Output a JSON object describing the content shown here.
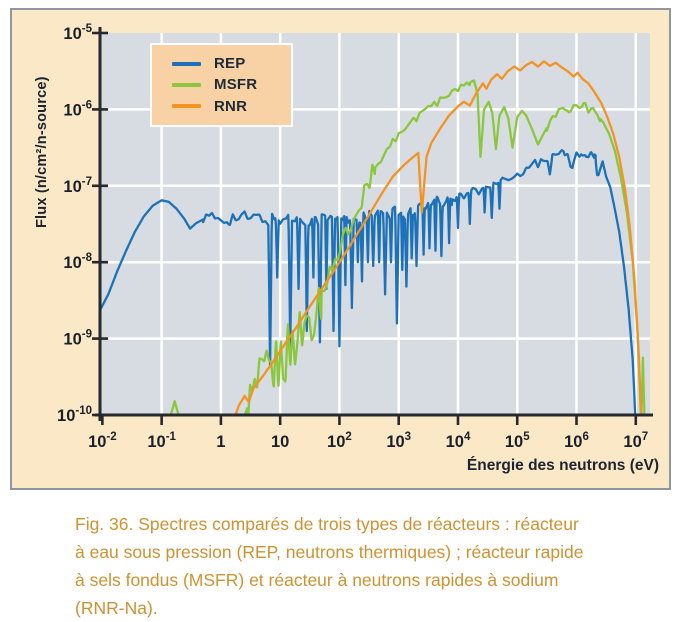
{
  "figure": {
    "lines": [
      "Fig. 36. Spectres comparés de trois types de réacteurs : réacteur",
      "à eau sous pression (REP, neutrons thermiques) ; réacteur rapide",
      "à sels fondus (MSFR) et réacteur à neutrons rapides à sodium",
      "(RNR-Na)."
    ]
  },
  "chart_data": {
    "type": "line",
    "x_label": "Énergie des neutrons (eV)",
    "y_label": "Flux (n/cm²/n-source)",
    "x_scale": "log",
    "y_scale": "log",
    "x_range_log10": [
      -2.04,
      7.24
    ],
    "y_range_log10": [
      -10,
      -5
    ],
    "plot_bg": "#d7dce3",
    "grid_color": "#ffffff",
    "axis_color": "#26292e",
    "label_color": "#1b2028",
    "x_ticks": [
      {
        "log10": -2,
        "base": "10",
        "exp": "-2"
      },
      {
        "log10": -1,
        "base": "10",
        "exp": "-1"
      },
      {
        "log10": 0,
        "base": "1",
        "exp": ""
      },
      {
        "log10": 1,
        "base": "10",
        "exp": ""
      },
      {
        "log10": 2,
        "base": "10",
        "exp": "2"
      },
      {
        "log10": 3,
        "base": "10",
        "exp": "3"
      },
      {
        "log10": 4,
        "base": "10",
        "exp": "4"
      },
      {
        "log10": 5,
        "base": "10",
        "exp": "5"
      },
      {
        "log10": 6,
        "base": "10",
        "exp": "6"
      },
      {
        "log10": 7,
        "base": "10",
        "exp": "7"
      }
    ],
    "y_ticks": [
      {
        "log10": -5,
        "base": "10",
        "exp": "-5"
      },
      {
        "log10": -6,
        "base": "10",
        "exp": "-6"
      },
      {
        "log10": -7,
        "base": "10",
        "exp": "-7"
      },
      {
        "log10": -8,
        "base": "10",
        "exp": "-8"
      },
      {
        "log10": -9,
        "base": "10",
        "exp": "-9"
      },
      {
        "log10": -10,
        "base": "10",
        "exp": "-10"
      }
    ],
    "x_grid_log10": [
      -1,
      0,
      1,
      2,
      3,
      4,
      5,
      6,
      7
    ],
    "y_grid_log10": [
      -6,
      -7,
      -8,
      -9
    ],
    "legend": {
      "bg": "#f8d2a4",
      "border": "#ffffff",
      "items": [
        "REP",
        "MSFR",
        "RNR"
      ]
    },
    "series": [
      {
        "name": "REP",
        "color": "#1d71b8",
        "points_log10": [
          [
            -2.04,
            -8.63
          ],
          [
            -1.9,
            -8.42
          ],
          [
            -1.75,
            -8.12
          ],
          [
            -1.6,
            -7.85
          ],
          [
            -1.45,
            -7.6
          ],
          [
            -1.3,
            -7.4
          ],
          [
            -1.15,
            -7.26
          ],
          [
            -1.0,
            -7.19
          ],
          [
            -0.88,
            -7.21
          ],
          [
            -0.75,
            -7.3
          ],
          [
            -0.62,
            -7.43
          ],
          [
            -0.52,
            -7.56
          ],
          [
            -0.42,
            -7.49
          ],
          [
            -0.3,
            -7.44
          ],
          [
            0.2,
            -7.42
          ],
          [
            0.7,
            -7.43
          ],
          [
            1.2,
            -7.42
          ],
          [
            1.7,
            -7.44
          ],
          [
            2.2,
            -7.42
          ],
          [
            2.7,
            -7.39
          ],
          [
            3.1,
            -7.35
          ],
          [
            3.53,
            -7.27
          ],
          [
            4.0,
            -7.14
          ],
          [
            4.5,
            -7.02
          ],
          [
            5.0,
            -6.84
          ],
          [
            5.3,
            -6.72
          ],
          [
            5.5,
            -6.65
          ],
          [
            5.65,
            -6.6
          ],
          [
            5.78,
            -6.53
          ],
          [
            5.86,
            -6.65
          ],
          [
            5.93,
            -6.78
          ],
          [
            6.0,
            -6.62
          ],
          [
            6.08,
            -6.55
          ],
          [
            6.16,
            -6.62
          ],
          [
            6.24,
            -6.55
          ],
          [
            6.32,
            -6.6
          ],
          [
            6.37,
            -6.86
          ],
          [
            6.44,
            -6.68
          ],
          [
            6.5,
            -6.88
          ],
          [
            6.57,
            -7.02
          ],
          [
            6.64,
            -7.28
          ],
          [
            6.72,
            -7.6
          ],
          [
            6.8,
            -8.05
          ],
          [
            6.88,
            -8.62
          ],
          [
            6.95,
            -9.3
          ],
          [
            7.0,
            -10.15
          ]
        ],
        "noise": [
          {
            "from": -0.3,
            "to": 3.9,
            "amp": 0.1,
            "step": 0.05
          },
          {
            "from": 3.9,
            "to": 6.3,
            "amp": 0.06,
            "step": 0.05
          }
        ],
        "dips": [
          [
            0.83,
            -9.35,
            0.03
          ],
          [
            0.95,
            -8.2,
            0.025
          ],
          [
            1.17,
            -9.1,
            0.03
          ],
          [
            1.31,
            -8.35,
            0.025
          ],
          [
            1.45,
            -8.9,
            0.025
          ],
          [
            1.56,
            -8.2,
            0.02
          ],
          [
            1.67,
            -9.05,
            0.03
          ],
          [
            1.78,
            -8.35,
            0.02
          ],
          [
            1.9,
            -8.9,
            0.025
          ],
          [
            2.0,
            -9.1,
            0.03
          ],
          [
            2.1,
            -8.3,
            0.02
          ],
          [
            2.21,
            -8.6,
            0.03
          ],
          [
            2.31,
            -8.0,
            0.02
          ],
          [
            2.38,
            -8.25,
            0.025
          ],
          [
            2.48,
            -8.0,
            0.02
          ],
          [
            2.57,
            -8.05,
            0.025
          ],
          [
            2.67,
            -8.0,
            0.02
          ],
          [
            2.77,
            -8.42,
            0.03
          ],
          [
            2.87,
            -8.0,
            0.02
          ],
          [
            2.97,
            -8.8,
            0.03
          ],
          [
            3.06,
            -8.1,
            0.02
          ],
          [
            3.13,
            -8.32,
            0.025
          ],
          [
            3.22,
            -7.95,
            0.02
          ],
          [
            3.3,
            -8.05,
            0.025
          ],
          [
            3.42,
            -7.9,
            0.02
          ],
          [
            3.52,
            -7.82,
            0.02
          ],
          [
            3.62,
            -7.85,
            0.02
          ],
          [
            3.72,
            -7.92,
            0.02
          ],
          [
            3.85,
            -7.75,
            0.02
          ],
          [
            4.0,
            -7.55,
            0.02
          ],
          [
            4.2,
            -7.5,
            0.02
          ],
          [
            4.45,
            -7.35,
            0.02
          ],
          [
            4.57,
            -7.42,
            0.025
          ],
          [
            4.7,
            -7.3,
            0.02
          ],
          [
            5.55,
            -6.85,
            0.04
          ],
          [
            6.35,
            -6.86,
            0.03
          ]
        ]
      },
      {
        "name": "MSFR",
        "color": "#8cc63f",
        "points_log10": [
          [
            -0.9,
            -10.15
          ],
          [
            -0.78,
            -9.82
          ],
          [
            -0.66,
            -10.15
          ],
          [
            0.33,
            -10.15
          ],
          [
            0.45,
            -9.9
          ],
          [
            0.6,
            -9.72
          ],
          [
            0.75,
            -9.55
          ],
          [
            0.9,
            -9.4
          ],
          [
            1.05,
            -9.25
          ],
          [
            1.2,
            -9.08
          ],
          [
            1.35,
            -8.9
          ],
          [
            1.5,
            -8.7
          ],
          [
            1.65,
            -8.45
          ],
          [
            1.8,
            -8.15
          ],
          [
            1.95,
            -7.87
          ],
          [
            2.1,
            -7.6
          ],
          [
            2.25,
            -7.34
          ],
          [
            2.4,
            -7.1
          ],
          [
            2.55,
            -6.87
          ],
          [
            2.7,
            -6.66
          ],
          [
            2.85,
            -6.48
          ],
          [
            3.0,
            -6.33
          ],
          [
            3.2,
            -6.17
          ],
          [
            3.4,
            -6.04
          ],
          [
            3.6,
            -5.94
          ],
          [
            3.8,
            -5.84
          ],
          [
            4.0,
            -5.74
          ],
          [
            4.15,
            -5.67
          ],
          [
            4.27,
            -5.62
          ],
          [
            4.33,
            -5.8
          ],
          [
            4.38,
            -6.62
          ],
          [
            4.44,
            -6.0
          ],
          [
            4.52,
            -5.9
          ],
          [
            4.58,
            -6.05
          ],
          [
            4.64,
            -6.52
          ],
          [
            4.7,
            -6.08
          ],
          [
            4.78,
            -5.97
          ],
          [
            4.85,
            -6.12
          ],
          [
            4.92,
            -6.5
          ],
          [
            5.0,
            -6.1
          ],
          [
            5.08,
            -6.02
          ],
          [
            5.15,
            -6.08
          ],
          [
            5.25,
            -6.26
          ],
          [
            5.35,
            -6.46
          ],
          [
            5.47,
            -6.28
          ],
          [
            5.57,
            -6.14
          ],
          [
            5.67,
            -6.05
          ],
          [
            5.77,
            -5.97
          ],
          [
            5.87,
            -6.02
          ],
          [
            5.95,
            -5.95
          ],
          [
            6.05,
            -6.0
          ],
          [
            6.12,
            -5.93
          ],
          [
            6.2,
            -6.02
          ],
          [
            6.28,
            -5.98
          ],
          [
            6.35,
            -6.07
          ],
          [
            6.45,
            -6.17
          ],
          [
            6.55,
            -6.32
          ],
          [
            6.65,
            -6.55
          ],
          [
            6.75,
            -6.9
          ],
          [
            6.85,
            -7.35
          ],
          [
            6.95,
            -8.0
          ],
          [
            7.03,
            -8.9
          ],
          [
            7.07,
            -9.7
          ],
          [
            7.09,
            -10.15
          ],
          [
            7.12,
            -9.25
          ],
          [
            7.15,
            -10.15
          ]
        ],
        "noise": [
          {
            "from": 0.45,
            "to": 1.7,
            "amp": 0.42,
            "step": 0.04
          },
          {
            "from": 1.7,
            "to": 2.6,
            "amp": 0.15,
            "step": 0.045
          },
          {
            "from": 2.6,
            "to": 4.2,
            "amp": 0.05,
            "step": 0.05
          },
          {
            "from": 5.5,
            "to": 6.4,
            "amp": 0.05,
            "step": 0.05
          }
        ],
        "dips": []
      },
      {
        "name": "RNR",
        "color": "#f39323",
        "points_log10": [
          [
            0.18,
            -10.15
          ],
          [
            0.3,
            -9.88
          ],
          [
            0.4,
            -9.75
          ],
          [
            0.47,
            -9.83
          ],
          [
            0.55,
            -9.65
          ],
          [
            0.7,
            -9.5
          ],
          [
            0.9,
            -9.28
          ],
          [
            1.1,
            -9.05
          ],
          [
            1.3,
            -8.82
          ],
          [
            1.5,
            -8.58
          ],
          [
            1.7,
            -8.35
          ],
          [
            1.9,
            -8.12
          ],
          [
            2.1,
            -7.88
          ],
          [
            2.3,
            -7.63
          ],
          [
            2.5,
            -7.38
          ],
          [
            2.7,
            -7.12
          ],
          [
            2.9,
            -6.88
          ],
          [
            3.1,
            -6.72
          ],
          [
            3.25,
            -6.62
          ],
          [
            3.33,
            -6.57
          ],
          [
            3.39,
            -7.35
          ],
          [
            3.47,
            -6.62
          ],
          [
            3.55,
            -6.44
          ],
          [
            3.7,
            -6.25
          ],
          [
            3.85,
            -6.08
          ],
          [
            4.0,
            -5.96
          ],
          [
            4.1,
            -5.9
          ],
          [
            4.2,
            -5.95
          ],
          [
            4.3,
            -5.8
          ],
          [
            4.42,
            -5.66
          ],
          [
            4.48,
            -5.73
          ],
          [
            4.56,
            -5.61
          ],
          [
            4.66,
            -5.54
          ],
          [
            4.74,
            -5.6
          ],
          [
            4.84,
            -5.5
          ],
          [
            4.95,
            -5.44
          ],
          [
            5.05,
            -5.49
          ],
          [
            5.15,
            -5.42
          ],
          [
            5.25,
            -5.38
          ],
          [
            5.35,
            -5.44
          ],
          [
            5.45,
            -5.37
          ],
          [
            5.55,
            -5.43
          ],
          [
            5.65,
            -5.39
          ],
          [
            5.75,
            -5.45
          ],
          [
            5.85,
            -5.5
          ],
          [
            5.95,
            -5.57
          ],
          [
            6.02,
            -5.52
          ],
          [
            6.1,
            -5.6
          ],
          [
            6.2,
            -5.66
          ],
          [
            6.3,
            -5.77
          ],
          [
            6.42,
            -5.92
          ],
          [
            6.52,
            -6.1
          ],
          [
            6.62,
            -6.32
          ],
          [
            6.72,
            -6.62
          ],
          [
            6.82,
            -7.05
          ],
          [
            6.9,
            -7.55
          ],
          [
            6.98,
            -8.25
          ],
          [
            7.05,
            -9.2
          ],
          [
            7.1,
            -10.15
          ]
        ],
        "noise": [],
        "dips": []
      }
    ]
  }
}
